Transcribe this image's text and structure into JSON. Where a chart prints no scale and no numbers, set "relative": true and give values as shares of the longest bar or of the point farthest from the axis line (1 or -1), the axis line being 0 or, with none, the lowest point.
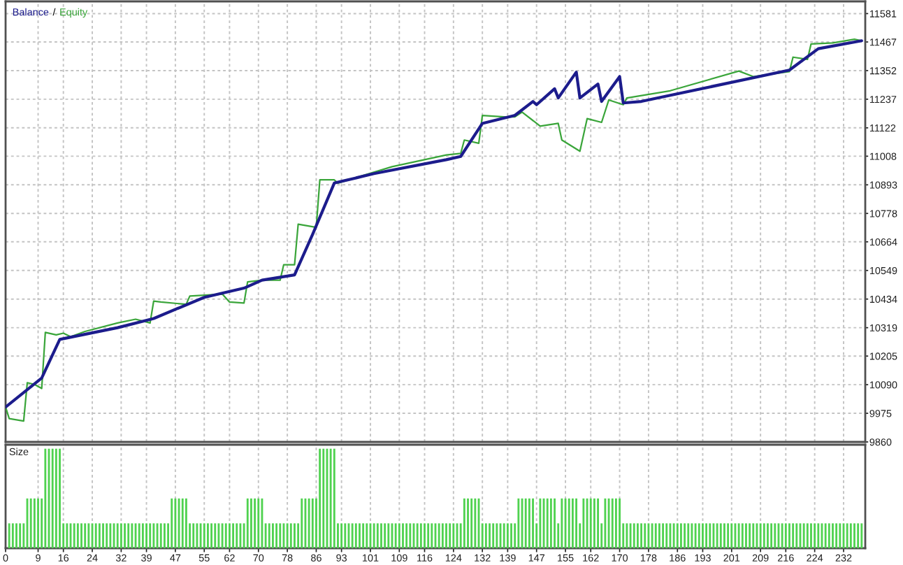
{
  "chart_data": [
    {
      "type": "line",
      "series": [
        {
          "name": "Balance",
          "color": "#1c1c8c",
          "x": [
            0,
            10,
            15,
            31,
            41,
            55,
            66,
            71,
            80,
            85,
            91,
            102,
            122,
            126,
            132,
            141,
            146,
            147,
            152,
            153,
            158,
            159,
            164,
            165,
            170,
            171,
            176,
            217,
            225,
            237
          ],
          "values": [
            10000,
            10117,
            10272,
            10319,
            10356,
            10441,
            10478,
            10510,
            10531,
            10694,
            10900,
            10938,
            10994,
            11007,
            11140,
            11172,
            11228,
            11215,
            11279,
            11242,
            11346,
            11242,
            11298,
            11228,
            11328,
            11222,
            11228,
            11354,
            11440,
            11472
          ]
        },
        {
          "name": "Equity",
          "color": "#3aa53a",
          "x": [
            0,
            1,
            5,
            6,
            8,
            10,
            11,
            14,
            16,
            18,
            22,
            31,
            36,
            40,
            41,
            43,
            50,
            51,
            60,
            62,
            66,
            67,
            71,
            76,
            77,
            80,
            81,
            86,
            87,
            91,
            92,
            107,
            122,
            126,
            127,
            131,
            132,
            138,
            141,
            143,
            148,
            153,
            154,
            159,
            161,
            165,
            167,
            171,
            172,
            184,
            203,
            207,
            217,
            218,
            222,
            223,
            229,
            235,
            237
          ],
          "values": [
            10000,
            9954,
            9944,
            10098,
            10091,
            10075,
            10300,
            10290,
            10297,
            10283,
            10304,
            10338,
            10353,
            10338,
            10426,
            10422,
            10413,
            10446,
            10454,
            10422,
            10418,
            10503,
            10510,
            10510,
            10572,
            10572,
            10735,
            10722,
            10913,
            10913,
            10900,
            10966,
            11013,
            11019,
            11073,
            11060,
            11172,
            11166,
            11166,
            11185,
            11129,
            11140,
            11073,
            11028,
            11159,
            11144,
            11234,
            11215,
            11242,
            11271,
            11350,
            11328,
            11348,
            11406,
            11397,
            11459,
            11463,
            11478,
            11472
          ]
        }
      ],
      "annotations": [
        "/"
      ],
      "xlim": [
        0,
        238
      ],
      "xticks": [
        0,
        9,
        16,
        24,
        32,
        39,
        47,
        55,
        62,
        70,
        78,
        86,
        93,
        101,
        109,
        116,
        124,
        132,
        139,
        147,
        155,
        162,
        170,
        178,
        186,
        193,
        201,
        209,
        216,
        224,
        232
      ],
      "ylim": [
        9860,
        11630
      ],
      "yticks": [
        9860,
        9975,
        10090,
        10205,
        10319,
        10434,
        10549,
        10664,
        10778,
        10893,
        11008,
        11122,
        11237,
        11352,
        11467,
        11581
      ],
      "grid": true,
      "legend": "top left",
      "tick_labels": "y"
    },
    {
      "type": "bar",
      "title": "Size",
      "relative": true,
      "color": "#4fd24f",
      "x": [
        1,
        2,
        3,
        4,
        5,
        6,
        7,
        8,
        9,
        10,
        11,
        12,
        13,
        14,
        15,
        16,
        17,
        18,
        19,
        20,
        21,
        22,
        23,
        24,
        25,
        26,
        27,
        28,
        29,
        30,
        31,
        32,
        33,
        34,
        35,
        36,
        37,
        38,
        39,
        40,
        41,
        42,
        43,
        44,
        45,
        46,
        47,
        48,
        49,
        50,
        51,
        52,
        53,
        54,
        55,
        56,
        57,
        58,
        59,
        60,
        61,
        62,
        63,
        64,
        65,
        66,
        67,
        68,
        69,
        70,
        71,
        72,
        73,
        74,
        75,
        76,
        77,
        78,
        79,
        80,
        81,
        82,
        83,
        84,
        85,
        86,
        87,
        88,
        89,
        90,
        91,
        92,
        93,
        94,
        95,
        96,
        97,
        98,
        99,
        100,
        101,
        102,
        103,
        104,
        105,
        106,
        107,
        108,
        109,
        110,
        111,
        112,
        113,
        114,
        115,
        116,
        117,
        118,
        119,
        120,
        121,
        122,
        123,
        124,
        125,
        126,
        127,
        128,
        129,
        130,
        131,
        132,
        133,
        134,
        135,
        136,
        137,
        138,
        139,
        140,
        141,
        142,
        143,
        144,
        145,
        146,
        147,
        148,
        149,
        150,
        151,
        152,
        153,
        154,
        155,
        156,
        157,
        158,
        159,
        160,
        161,
        162,
        163,
        164,
        165,
        166,
        167,
        168,
        169,
        170,
        171,
        172,
        173,
        174,
        175,
        176,
        177,
        178,
        179,
        180,
        181,
        182,
        183,
        184,
        185,
        186,
        187,
        188,
        189,
        190,
        191,
        192,
        193,
        194,
        195,
        196,
        197,
        198,
        199,
        200,
        201,
        202,
        203,
        204,
        205,
        206,
        207,
        208,
        209,
        210,
        211,
        212,
        213,
        214,
        215,
        216,
        217,
        218,
        219,
        220,
        221,
        222,
        223,
        224,
        225,
        226,
        227,
        228,
        229,
        230,
        231,
        232,
        233,
        234,
        235,
        236,
        237
      ],
      "values": [
        0.25,
        0.25,
        0.25,
        0.25,
        0.25,
        0.5,
        0.5,
        0.5,
        0.5,
        0.5,
        1,
        1,
        1,
        1,
        1,
        0.25,
        0.25,
        0.25,
        0.25,
        0.25,
        0.25,
        0.25,
        0.25,
        0.25,
        0.25,
        0.25,
        0.25,
        0.25,
        0.25,
        0.25,
        0.25,
        0.25,
        0.25,
        0.25,
        0.25,
        0.25,
        0.25,
        0.25,
        0.25,
        0.25,
        0.25,
        0.25,
        0.25,
        0.25,
        0.25,
        0.5,
        0.5,
        0.5,
        0.5,
        0.5,
        0.25,
        0.25,
        0.25,
        0.25,
        0.25,
        0.25,
        0.25,
        0.25,
        0.25,
        0.25,
        0.25,
        0.25,
        0.25,
        0.25,
        0.25,
        0.25,
        0.5,
        0.5,
        0.5,
        0.5,
        0.5,
        0.25,
        0.25,
        0.25,
        0.25,
        0.25,
        0.25,
        0.25,
        0.25,
        0.25,
        0.25,
        0.5,
        0.5,
        0.5,
        0.5,
        0.5,
        1,
        1,
        1,
        1,
        1,
        0.25,
        0.25,
        0.25,
        0.25,
        0.25,
        0.25,
        0.25,
        0.25,
        0.25,
        0.25,
        0.25,
        0.25,
        0.25,
        0.25,
        0.25,
        0.25,
        0.25,
        0.25,
        0.25,
        0.25,
        0.25,
        0.25,
        0.25,
        0.25,
        0.25,
        0.25,
        0.25,
        0.25,
        0.25,
        0.25,
        0.25,
        0.25,
        0.25,
        0.25,
        0.25,
        0.5,
        0.5,
        0.5,
        0.5,
        0.5,
        0.25,
        0.25,
        0.25,
        0.25,
        0.25,
        0.25,
        0.25,
        0.25,
        0.25,
        0.25,
        0.5,
        0.5,
        0.5,
        0.5,
        0.5,
        0.25,
        0.5,
        0.5,
        0.5,
        0.5,
        0.5,
        0.25,
        0.5,
        0.5,
        0.5,
        0.5,
        0.5,
        0.25,
        0.5,
        0.5,
        0.5,
        0.5,
        0.5,
        0.25,
        0.5,
        0.5,
        0.5,
        0.5,
        0.5,
        0.25,
        0.25,
        0.25,
        0.25,
        0.25,
        0.25,
        0.25,
        0.25,
        0.25,
        0.25,
        0.25,
        0.25,
        0.25,
        0.25,
        0.25,
        0.25,
        0.25,
        0.25,
        0.25,
        0.25,
        0.25,
        0.25,
        0.25,
        0.25,
        0.25,
        0.25,
        0.25,
        0.25,
        0.25,
        0.25,
        0.25,
        0.25,
        0.25,
        0.25,
        0.25,
        0.25,
        0.25,
        0.25,
        0.25,
        0.25,
        0.25,
        0.25,
        0.25,
        0.25,
        0.25,
        0.25,
        0.25,
        0.25,
        0.25,
        0.25,
        0.25,
        0.25,
        0.25,
        0.25,
        0.25,
        0.25,
        0.25,
        0.25,
        0.25,
        0.25,
        0.25,
        0.25,
        0.25,
        0.25,
        0.25,
        0.25,
        0.25
      ],
      "xlim": [
        0,
        238
      ],
      "xticks": [
        0,
        9,
        16,
        24,
        32,
        39,
        47,
        55,
        62,
        70,
        78,
        86,
        93,
        101,
        109,
        116,
        124,
        132,
        139,
        147,
        155,
        162,
        170,
        178,
        186,
        193,
        201,
        209,
        216,
        224,
        232
      ],
      "grid": "x",
      "tick_labels": "x"
    }
  ]
}
